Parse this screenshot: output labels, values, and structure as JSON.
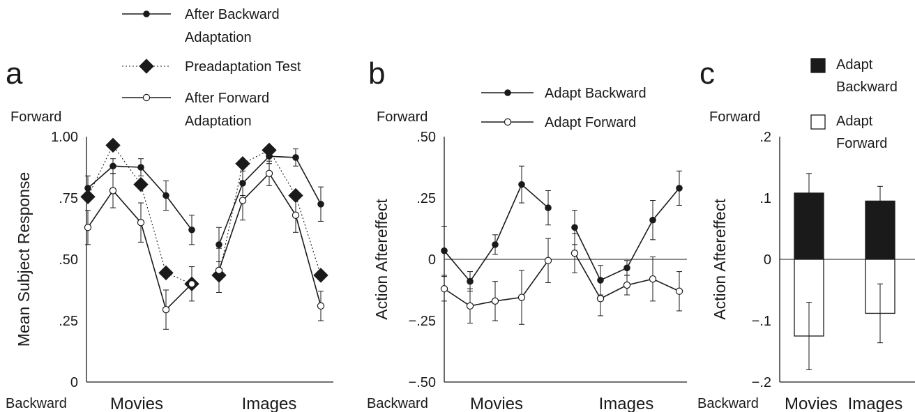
{
  "colors": {
    "ink": "#1a1a1a",
    "fill_dark": "#1a1a1a",
    "fill_open": "#ffffff"
  },
  "chart_data": [
    {
      "panel": "a",
      "type": "line",
      "ylabel": "Mean Subject Response",
      "ylim": [
        0,
        1.0
      ],
      "yticks": [
        "0",
        ".25",
        ".50",
        ".75",
        "1.00"
      ],
      "ytick_values": [
        0,
        0.25,
        0.5,
        0.75,
        1.0
      ],
      "y_top_label": "Forward",
      "y_bottom_label": "Backward",
      "categories": [
        "Movies",
        "Images"
      ],
      "points_per_category": 5,
      "legend_placement": "top",
      "series": [
        {
          "name": "After Backward Adaptation",
          "line1": "After Backward",
          "line2": "Adaptation",
          "style": "solid",
          "marker": "filled-circle",
          "groups": [
            {
              "values": [
                0.79,
                0.88,
                0.875,
                0.76,
                0.62
              ],
              "err": [
                0.05,
                0.03,
                0.035,
                0.06,
                0.06
              ]
            },
            {
              "values": [
                0.56,
                0.81,
                0.92,
                0.915,
                0.725
              ],
              "err": [
                0.07,
                0.05,
                0.03,
                0.035,
                0.07
              ]
            }
          ]
        },
        {
          "name": "Preadaptation Test",
          "line1": "Preadaptation Test",
          "line2": "",
          "style": "dotted",
          "marker": "diamond",
          "groups": [
            {
              "values": [
                0.755,
                0.965,
                0.805,
                0.445,
                0.4
              ],
              "err": [
                0,
                0,
                0,
                0,
                0
              ]
            },
            {
              "values": [
                0.435,
                0.89,
                0.945,
                0.76,
                0.435
              ],
              "err": [
                0,
                0,
                0,
                0,
                0
              ]
            }
          ]
        },
        {
          "name": "After Forward Adaptation",
          "line1": "After Forward",
          "line2": "Adaptation",
          "style": "solid",
          "marker": "open-circle",
          "groups": [
            {
              "values": [
                0.63,
                0.78,
                0.65,
                0.295,
                0.4
              ],
              "err": [
                0.07,
                0.07,
                0.08,
                0.08,
                0.07
              ]
            },
            {
              "values": [
                0.455,
                0.74,
                0.85,
                0.68,
                0.31
              ],
              "err": [
                0.09,
                0.08,
                0.05,
                0.07,
                0.06
              ]
            }
          ]
        }
      ]
    },
    {
      "panel": "b",
      "type": "line",
      "ylabel": "Action Aftereffect",
      "ylim": [
        -0.5,
        0.5
      ],
      "yticks": [
        "−.50",
        "−.25",
        "0",
        ".25",
        ".50"
      ],
      "ytick_values": [
        -0.5,
        -0.25,
        0,
        0.25,
        0.5
      ],
      "y_top_label": "Forward",
      "y_bottom_label": "Backward",
      "categories": [
        "Movies",
        "Images"
      ],
      "points_per_category": 5,
      "legend_placement": "top",
      "series": [
        {
          "name": "Adapt Backward",
          "marker": "filled-circle",
          "groups": [
            {
              "values": [
                0.035,
                -0.09,
                0.06,
                0.305,
                0.21
              ],
              "err": [
                0.1,
                0.04,
                0.04,
                0.075,
                0.07
              ]
            },
            {
              "values": [
                0.13,
                -0.085,
                -0.035,
                0.16,
                0.29
              ],
              "err": [
                0.07,
                0.06,
                0.03,
                0.08,
                0.07
              ]
            }
          ]
        },
        {
          "name": "Adapt Forward",
          "marker": "open-circle",
          "groups": [
            {
              "values": [
                -0.12,
                -0.19,
                -0.17,
                -0.155,
                -0.005
              ],
              "err": [
                0.05,
                0.07,
                0.08,
                0.11,
                0.09
              ]
            },
            {
              "values": [
                0.025,
                -0.16,
                -0.105,
                -0.08,
                -0.13
              ],
              "err": [
                0.08,
                0.07,
                0.04,
                0.09,
                0.08
              ]
            }
          ]
        }
      ]
    },
    {
      "panel": "c",
      "type": "bar",
      "ylabel": "Action Aftereffect",
      "ylim": [
        -0.2,
        0.2
      ],
      "yticks": [
        "−.2",
        "−.1",
        "0",
        ".1",
        ".2"
      ],
      "ytick_values": [
        -0.2,
        -0.1,
        0,
        0.1,
        0.2
      ],
      "y_top_label": "Forward",
      "y_bottom_label": "Backward",
      "categories": [
        "Movies",
        "Images"
      ],
      "legend_placement": "top-right",
      "series": [
        {
          "name": "Adapt Backward",
          "line1": "Adapt",
          "line2": "Backward",
          "fill": "filled",
          "values": [
            0.108,
            0.095
          ],
          "err": [
            0.032,
            0.024
          ]
        },
        {
          "name": "Adapt Forward",
          "line1": "Adapt",
          "line2": "Forward",
          "fill": "open",
          "values": [
            -0.125,
            -0.088
          ],
          "err": [
            0.055,
            0.048
          ]
        }
      ]
    }
  ]
}
